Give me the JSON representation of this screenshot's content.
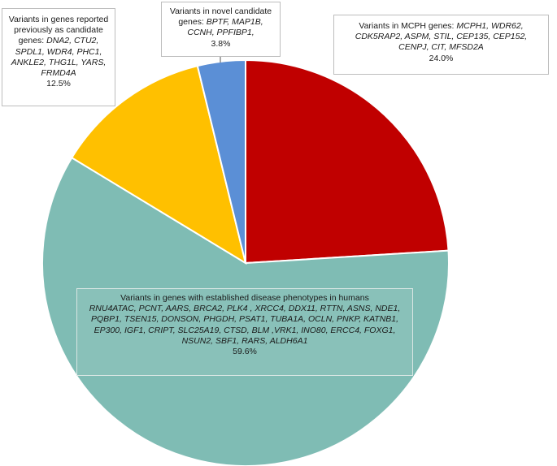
{
  "chart_data": {
    "type": "pie",
    "title": "",
    "start_angle_deg": 0,
    "direction": "clockwise",
    "slices": [
      {
        "label_prefix": "Variants in MCPH genes: ",
        "genes": "MCPH1, WDR62, CDK5RAP2, ASPM, STIL, CEP135, CEP152, CENPJ, CIT, MFSD2A",
        "value": 24.0,
        "value_label": "24.0%",
        "color": "#c00000"
      },
      {
        "label_prefix": "Variants in genes with established disease phenotypes in humans",
        "genes": "RNU4ATAC, PCNT, AARS, BRCA2, PLK4 , XRCC4, DDX11, RTTN, ASNS, NDE1, PQBP1, TSEN15, DONSON, PHGDH, PSAT1, TUBA1A, OCLN, PNKP, KATNB1, EP300, IGF1, CRIPT, SLC25A19, CTSD, BLM ,VRK1, INO80, ERCC4, FOXG1, NSUN2, SBF1, RARS, ALDH6A1",
        "value": 59.6,
        "value_label": "59.6%",
        "color": "#7fbcb4"
      },
      {
        "label_prefix": "Variants in genes reported previously as candidate genes: ",
        "genes": "DNA2, CTU2, SPDL1, WDR4, PHC1, ANKLE2, THG1L, YARS, FRMD4A",
        "value": 12.5,
        "value_label": "12.5%",
        "color": "#ffc000"
      },
      {
        "label_prefix": "Variants in novel candidate genes: ",
        "genes": "BPTF, MAP1B, CCNH, PPFIBP1,",
        "value": 3.8,
        "value_label": "3.8%",
        "color": "#5b8fd6"
      }
    ]
  }
}
